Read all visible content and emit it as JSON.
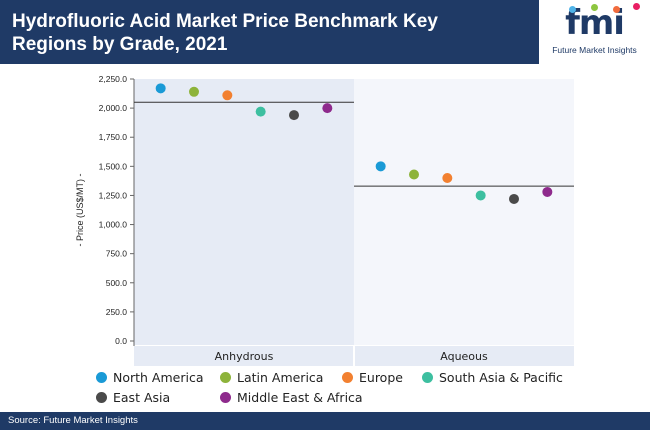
{
  "header": {
    "title": "Hydrofluoric Acid Market Price Benchmark Key Regions by Grade, 2021"
  },
  "logo": {
    "mark": "fmi",
    "subtitle": "Future Market Insights",
    "dot_colors": [
      "#4fb3e8",
      "#8dc63f",
      "#f26c3d",
      "#e91e63"
    ]
  },
  "chart_data": {
    "type": "scatter",
    "title": "Hydrofluoric Acid Market Price Benchmark Key Regions by Grade, 2021",
    "ylabel": "- Price (US$/MT) -",
    "ylim": [
      0,
      2250
    ],
    "yticks": [
      "2,250.0",
      "2,000.0",
      "1,750.0",
      "1,500.0",
      "1,250.0",
      "1,000.0",
      "750.0",
      "500.0",
      "250.0",
      "0.0"
    ],
    "ytick_values": [
      2250,
      2000,
      1750,
      1500,
      1250,
      1000,
      750,
      500,
      250,
      0
    ],
    "categories": [
      "Anhydrous",
      "Aqueous"
    ],
    "series": [
      {
        "name": "North America",
        "color": "#1a9ad6",
        "values": [
          2170,
          1500
        ]
      },
      {
        "name": "Latin America",
        "color": "#8db33a",
        "values": [
          2140,
          1430
        ]
      },
      {
        "name": "Europe",
        "color": "#f28030",
        "values": [
          2110,
          1400
        ]
      },
      {
        "name": "South Asia & Pacific",
        "color": "#3dbfa0",
        "values": [
          1970,
          1250
        ]
      },
      {
        "name": "East Asia",
        "color": "#4a4a4a",
        "values": [
          1940,
          1220
        ]
      },
      {
        "name": "Middle East & Africa",
        "color": "#8e2a8c",
        "values": [
          2000,
          1280
        ]
      }
    ],
    "averages": [
      2050,
      1330
    ],
    "grid": false,
    "legend_position": "bottom",
    "shaded_panel": "Anhydrous"
  },
  "footer": {
    "source": "Source: Future Market Insights"
  }
}
